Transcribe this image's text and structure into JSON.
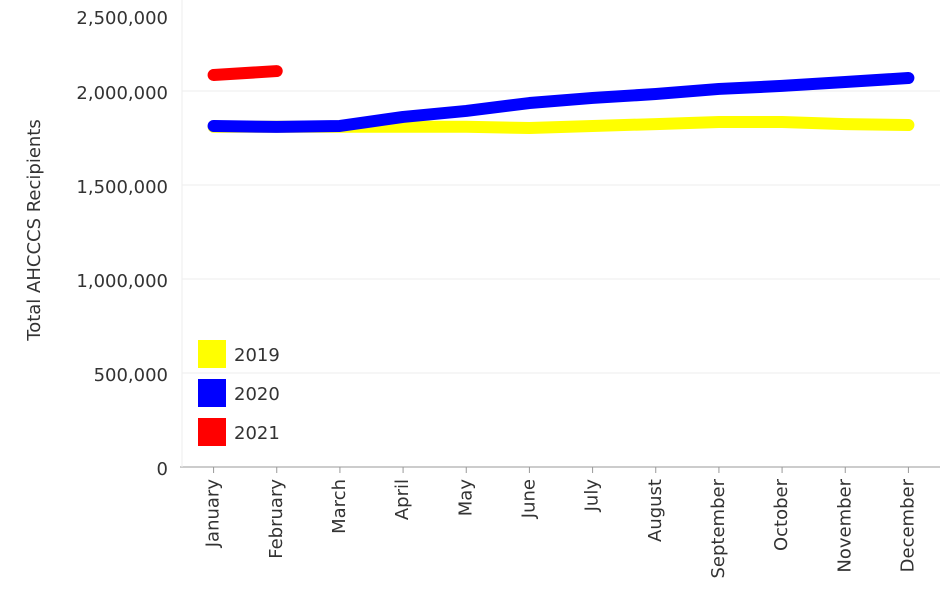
{
  "chart_data": {
    "type": "line",
    "y_label": "Total AHCCCS Recipients",
    "categories": [
      "January",
      "February",
      "March",
      "April",
      "May",
      "June",
      "July",
      "August",
      "September",
      "October",
      "November",
      "December"
    ],
    "series": [
      {
        "name": "2019",
        "color": "#ffff00",
        "values": [
          1810000,
          1810000,
          1810000,
          1810000,
          1810000,
          1803000,
          1814000,
          1824000,
          1835000,
          1835000,
          1824000,
          1819000
        ]
      },
      {
        "name": "2020",
        "color": "#0000ff",
        "values": [
          1814000,
          1809000,
          1814000,
          1862000,
          1894000,
          1936000,
          1963000,
          1984000,
          2011000,
          2027000,
          2048000,
          2069000
        ]
      },
      {
        "name": "2021",
        "color": "#ff0000",
        "values": [
          2085000,
          2106000,
          null,
          null,
          null,
          null,
          null,
          null,
          null,
          null,
          null,
          null
        ]
      }
    ],
    "ylim": [
      0,
      2500000
    ],
    "yticks": [
      {
        "value": 0,
        "label": "0"
      },
      {
        "value": 500000,
        "label": "500,000"
      },
      {
        "value": 1000000,
        "label": "1,000,000"
      },
      {
        "value": 1500000,
        "label": "1,500,000"
      },
      {
        "value": 2000000,
        "label": "2,000,000"
      },
      {
        "value": 2500000,
        "label": "2,500,000"
      }
    ],
    "grid": true,
    "legend": "lower left"
  }
}
